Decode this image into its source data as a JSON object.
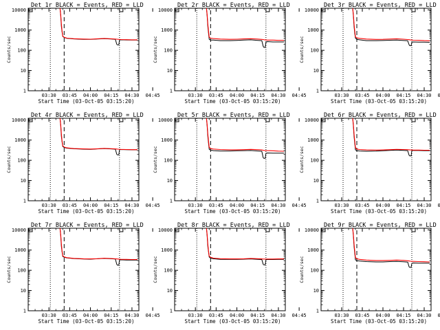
{
  "figure": {
    "xlabel": "Start Time (03-Oct-05 03:15:20)",
    "ylabel": "Counts/sec",
    "x_ticks": [
      "03:30",
      "03:45",
      "04:00",
      "04:15",
      "04:30",
      "04:45"
    ],
    "y_ticks": [
      "1",
      "10",
      "100",
      "1000",
      "10000"
    ],
    "series_colors": {
      "events": "#000000",
      "lld": "#ff0000"
    }
  },
  "chart_data": [
    {
      "type": "line",
      "title": "Det 1r BLACK = Events, RED = LLD",
      "xlabel": "Start Time (03-Oct-05 03:15:20)",
      "ylabel": "Counts/sec",
      "x_unit": "minutes",
      "xlim": [
        15,
        95
      ],
      "ylim": [
        1,
        12000
      ],
      "y_scale": "log",
      "vlines_dotted": [
        31,
        81
      ],
      "vline_dashed": 41,
      "series": [
        {
          "x": [
            38,
            38.5,
            39,
            39.5,
            40,
            41,
            43,
            48,
            55,
            60,
            65,
            70,
            75,
            78,
            79,
            79.5,
            80.5,
            81,
            82,
            86,
            90,
            94
          ],
          "values": [
            12000,
            5000,
            1500,
            800,
            480,
            430,
            390,
            365,
            350,
            345,
            360,
            375,
            360,
            350,
            200,
            185,
            185,
            320,
            330,
            325,
            320,
            320
          ]
        },
        {
          "x": [
            38,
            38.5,
            39,
            39.5,
            40,
            41,
            43,
            48,
            55,
            60,
            65,
            70,
            75,
            78,
            79,
            80,
            82,
            86,
            90,
            94
          ],
          "values": [
            12000,
            6000,
            2000,
            900,
            500,
            440,
            400,
            375,
            360,
            355,
            370,
            385,
            370,
            360,
            355,
            350,
            340,
            335,
            330,
            330
          ]
        }
      ]
    },
    {
      "type": "line",
      "title": "Det 2r BLACK = Events, RED = LLD",
      "xlabel": "Start Time (03-Oct-05 03:15:20)",
      "ylabel": "Counts/sec",
      "x_unit": "minutes",
      "xlim": [
        15,
        95
      ],
      "ylim": [
        1,
        12000
      ],
      "y_scale": "log",
      "vlines_dotted": [
        31,
        81
      ],
      "vline_dashed": 41,
      "series": [
        {
          "x": [
            38,
            38.5,
            39,
            39.5,
            40,
            41,
            43,
            48,
            55,
            60,
            65,
            70,
            75,
            78,
            79,
            79.5,
            80.5,
            81,
            82,
            86,
            90,
            94
          ],
          "values": [
            12000,
            5000,
            1500,
            700,
            350,
            320,
            320,
            300,
            300,
            310,
            320,
            330,
            310,
            300,
            160,
            140,
            140,
            250,
            270,
            260,
            260,
            260
          ]
        },
        {
          "x": [
            38,
            38.5,
            39,
            39.5,
            40,
            41,
            43,
            48,
            55,
            60,
            65,
            70,
            75,
            78,
            79,
            80,
            82,
            86,
            90,
            94
          ],
          "values": [
            12000,
            6000,
            2000,
            900,
            450,
            400,
            380,
            360,
            350,
            355,
            365,
            375,
            360,
            345,
            340,
            330,
            320,
            320,
            310,
            310
          ]
        }
      ]
    },
    {
      "type": "line",
      "title": "Det 3r BLACK = Events, RED = LLD",
      "xlabel": "Start Time (03-Oct-05 03:15:20)",
      "ylabel": "Counts/sec",
      "x_unit": "minutes",
      "xlim": [
        15,
        95
      ],
      "ylim": [
        1,
        12000
      ],
      "y_scale": "log",
      "vlines_dotted": [
        31,
        81
      ],
      "vline_dashed": 41,
      "series": [
        {
          "x": [
            38,
            38.5,
            39,
            39.5,
            40,
            41,
            43,
            48,
            55,
            60,
            65,
            70,
            75,
            78,
            79,
            79.5,
            80.5,
            81,
            82,
            86,
            90,
            94
          ],
          "values": [
            12000,
            5000,
            1500,
            700,
            400,
            350,
            330,
            300,
            300,
            305,
            315,
            320,
            305,
            295,
            190,
            170,
            170,
            250,
            260,
            255,
            255,
            250
          ]
        },
        {
          "x": [
            38,
            38.5,
            39,
            39.5,
            40,
            41,
            43,
            48,
            55,
            60,
            65,
            70,
            75,
            78,
            79,
            80,
            82,
            86,
            90,
            94
          ],
          "values": [
            12000,
            6000,
            2000,
            900,
            460,
            410,
            390,
            360,
            345,
            350,
            360,
            370,
            355,
            340,
            335,
            325,
            315,
            310,
            300,
            295
          ]
        }
      ]
    },
    {
      "type": "line",
      "title": "Det 4r BLACK = Events, RED = LLD",
      "xlabel": "Start Time (03-Oct-05 03:15:20)",
      "ylabel": "Counts/sec",
      "x_unit": "minutes",
      "xlim": [
        15,
        95
      ],
      "ylim": [
        1,
        12000
      ],
      "y_scale": "log",
      "vlines_dotted": [
        31,
        81
      ],
      "vline_dashed": 41,
      "series": [
        {
          "x": [
            38,
            38.5,
            39,
            39.5,
            40,
            41,
            43,
            48,
            55,
            60,
            65,
            70,
            75,
            78,
            79,
            79.5,
            80.5,
            81,
            82,
            86,
            90,
            94
          ],
          "values": [
            12000,
            5000,
            1500,
            800,
            480,
            430,
            400,
            370,
            355,
            350,
            365,
            380,
            365,
            355,
            200,
            185,
            185,
            330,
            340,
            335,
            330,
            330
          ]
        },
        {
          "x": [
            38,
            38.5,
            39,
            39.5,
            40,
            41,
            43,
            48,
            55,
            60,
            65,
            70,
            75,
            78,
            79,
            80,
            82,
            86,
            90,
            94
          ],
          "values": [
            12000,
            6000,
            2000,
            900,
            520,
            450,
            410,
            380,
            365,
            360,
            370,
            390,
            375,
            365,
            360,
            355,
            345,
            340,
            335,
            335
          ]
        }
      ]
    },
    {
      "type": "line",
      "title": "Det 5r BLACK = Events, RED = LLD",
      "xlabel": "Start Time (03-Oct-05 03:15:20)",
      "ylabel": "Counts/sec",
      "x_unit": "minutes",
      "xlim": [
        15,
        95
      ],
      "ylim": [
        1,
        12000
      ],
      "y_scale": "log",
      "vlines_dotted": [
        31,
        81
      ],
      "vline_dashed": 41,
      "series": [
        {
          "x": [
            38,
            38.5,
            39,
            39.5,
            40,
            41,
            43,
            48,
            55,
            60,
            65,
            70,
            75,
            78,
            79,
            79.5,
            80.5,
            81,
            82,
            86,
            90,
            94
          ],
          "values": [
            12000,
            5000,
            1500,
            700,
            350,
            320,
            300,
            290,
            290,
            295,
            300,
            305,
            290,
            280,
            135,
            125,
            125,
            220,
            230,
            225,
            225,
            225
          ]
        },
        {
          "x": [
            38,
            38.5,
            39,
            39.5,
            40,
            41,
            43,
            48,
            55,
            60,
            65,
            70,
            75,
            78,
            79,
            80,
            82,
            86,
            90,
            94
          ],
          "values": [
            12000,
            6000,
            2000,
            900,
            440,
            380,
            360,
            340,
            330,
            330,
            335,
            345,
            335,
            325,
            315,
            305,
            300,
            295,
            285,
            280
          ]
        }
      ]
    },
    {
      "type": "line",
      "title": "Det 6r BLACK = Events, RED = LLD",
      "xlabel": "Start Time (03-Oct-05 03:15:20)",
      "ylabel": "Counts/sec",
      "x_unit": "minutes",
      "xlim": [
        15,
        95
      ],
      "ylim": [
        1,
        12000
      ],
      "y_scale": "log",
      "vlines_dotted": [
        31,
        81
      ],
      "vline_dashed": 41,
      "series": [
        {
          "x": [
            38,
            38.5,
            39,
            39.5,
            40,
            41,
            43,
            48,
            55,
            60,
            65,
            70,
            75,
            78,
            79,
            79.5,
            80.5,
            81,
            82,
            86,
            90,
            94
          ],
          "values": [
            12000,
            5000,
            1500,
            700,
            330,
            300,
            290,
            280,
            285,
            295,
            310,
            320,
            310,
            300,
            180,
            165,
            165,
            300,
            310,
            305,
            300,
            300
          ]
        },
        {
          "x": [
            38,
            38.5,
            39,
            39.5,
            40,
            41,
            43,
            48,
            55,
            60,
            65,
            70,
            75,
            78,
            79,
            80,
            82,
            86,
            90,
            94
          ],
          "values": [
            12000,
            6000,
            2000,
            900,
            420,
            360,
            340,
            325,
            320,
            325,
            335,
            345,
            340,
            335,
            330,
            325,
            320,
            320,
            315,
            315
          ]
        }
      ]
    },
    {
      "type": "line",
      "title": "Det 7r BLACK = Events, RED = LLD",
      "xlabel": "Start Time (03-Oct-05 03:15:20)",
      "ylabel": "Counts/sec",
      "x_unit": "minutes",
      "xlim": [
        15,
        95
      ],
      "ylim": [
        1,
        12000
      ],
      "y_scale": "log",
      "vlines_dotted": [
        31,
        81
      ],
      "vline_dashed": 41,
      "series": [
        {
          "x": [
            38,
            38.5,
            39,
            39.5,
            40,
            41,
            43,
            48,
            55,
            60,
            65,
            70,
            75,
            78,
            79,
            79.5,
            80.5,
            81,
            82,
            86,
            90,
            94
          ],
          "values": [
            12000,
            5000,
            1500,
            800,
            480,
            440,
            410,
            380,
            360,
            355,
            370,
            385,
            370,
            360,
            200,
            180,
            180,
            320,
            330,
            320,
            320,
            320
          ]
        },
        {
          "x": [
            38,
            38.5,
            39,
            39.5,
            40,
            41,
            43,
            48,
            55,
            60,
            65,
            70,
            75,
            78,
            79,
            80,
            82,
            86,
            90,
            94
          ],
          "values": [
            12000,
            6000,
            2000,
            900,
            520,
            460,
            420,
            390,
            370,
            365,
            375,
            395,
            380,
            370,
            365,
            360,
            350,
            345,
            340,
            340
          ]
        }
      ]
    },
    {
      "type": "line",
      "title": "Det 8r BLACK = Events, RED = LLD",
      "xlabel": "Start Time (03-Oct-05 03:15:20)",
      "ylabel": "Counts/sec",
      "x_unit": "minutes",
      "xlim": [
        15,
        95
      ],
      "ylim": [
        1,
        12000
      ],
      "y_scale": "log",
      "vlines_dotted": [
        31,
        81
      ],
      "vline_dashed": 41,
      "series": [
        {
          "x": [
            38,
            38.5,
            39,
            39.5,
            40,
            41,
            43,
            48,
            55,
            60,
            65,
            70,
            75,
            78,
            79,
            79.5,
            80.5,
            81,
            82,
            86,
            90,
            94
          ],
          "values": [
            12000,
            5000,
            1500,
            800,
            450,
            400,
            370,
            350,
            345,
            345,
            355,
            365,
            350,
            340,
            200,
            185,
            185,
            330,
            340,
            340,
            345,
            350
          ]
        },
        {
          "x": [
            38,
            38.5,
            39,
            39.5,
            40,
            41,
            43,
            48,
            55,
            60,
            65,
            70,
            75,
            78,
            79,
            80,
            82,
            86,
            90,
            94
          ],
          "values": [
            12000,
            6000,
            2000,
            900,
            500,
            440,
            400,
            375,
            365,
            365,
            370,
            385,
            375,
            365,
            360,
            360,
            360,
            360,
            365,
            365
          ]
        }
      ]
    },
    {
      "type": "line",
      "title": "Det 9r BLACK = Events, RED = LLD",
      "xlabel": "Start Time (03-Oct-05 03:15:20)",
      "ylabel": "Counts/sec",
      "x_unit": "minutes",
      "xlim": [
        15,
        95
      ],
      "ylim": [
        1,
        12000
      ],
      "y_scale": "log",
      "vlines_dotted": [
        31,
        81
      ],
      "vline_dashed": 41,
      "series": [
        {
          "x": [
            38,
            38.5,
            39,
            39.5,
            40,
            41,
            43,
            48,
            55,
            60,
            65,
            70,
            75,
            78,
            79,
            79.5,
            80.5,
            81,
            82,
            86,
            90,
            94
          ],
          "values": [
            12000,
            5000,
            1500,
            700,
            330,
            300,
            290,
            270,
            260,
            260,
            270,
            275,
            265,
            255,
            150,
            140,
            140,
            220,
            230,
            225,
            225,
            225
          ]
        },
        {
          "x": [
            38,
            38.5,
            39,
            39.5,
            40,
            41,
            43,
            48,
            55,
            60,
            65,
            70,
            75,
            78,
            79,
            80,
            82,
            86,
            90,
            94
          ],
          "values": [
            12000,
            6000,
            2000,
            900,
            420,
            370,
            345,
            320,
            305,
            305,
            310,
            320,
            310,
            295,
            290,
            280,
            275,
            270,
            265,
            260
          ]
        }
      ]
    }
  ]
}
